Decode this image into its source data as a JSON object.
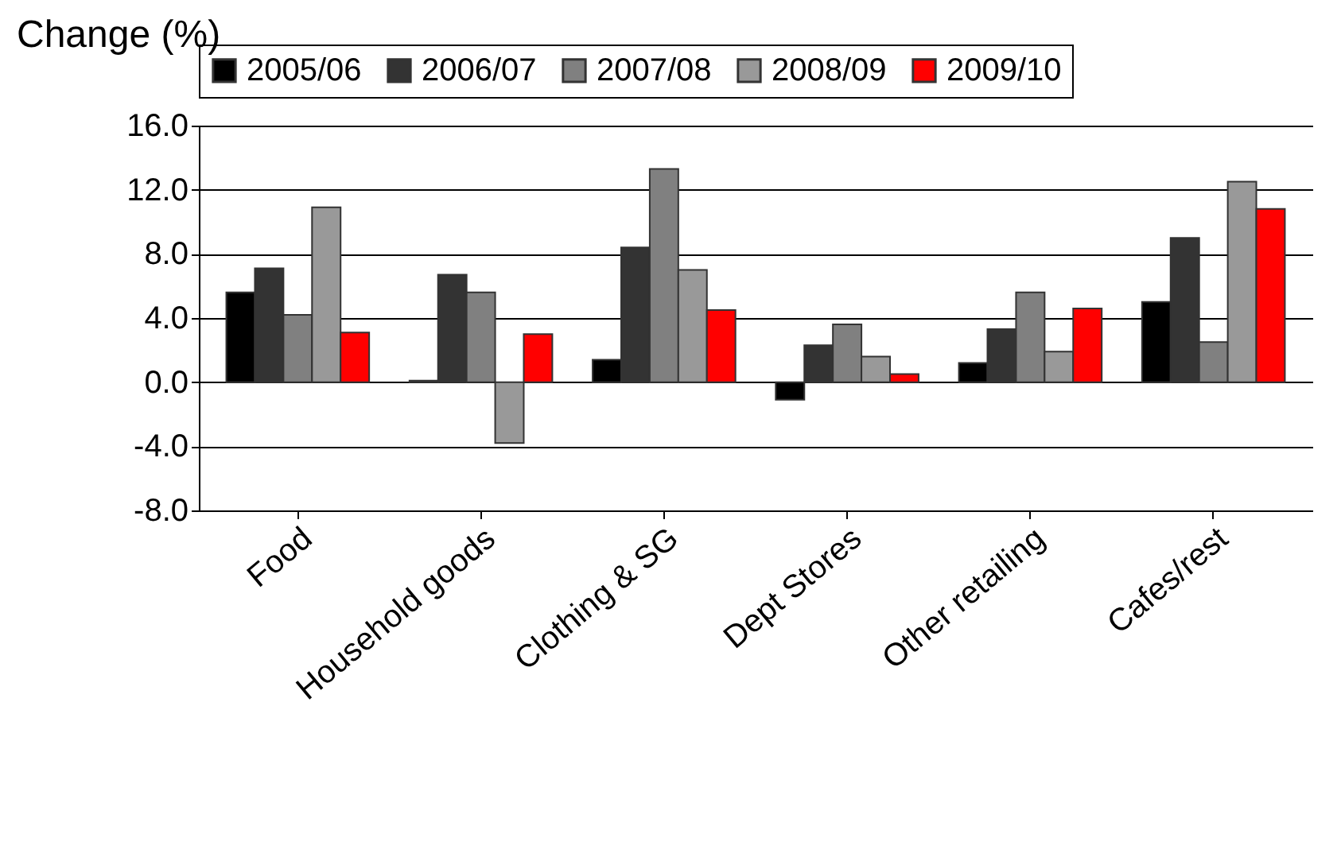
{
  "chart_data": {
    "type": "bar",
    "ylabel": "Change (%)",
    "categories": [
      "Food",
      "Household goods",
      "Clothing & SG",
      "Dept Stores",
      "Other retailing",
      "Cafes/rest"
    ],
    "series": [
      {
        "name": "2005/06",
        "color": "#000000",
        "values": [
          5.6,
          0.1,
          1.4,
          -1.1,
          1.2,
          5.0
        ]
      },
      {
        "name": "2006/07",
        "color": "#333333",
        "values": [
          7.1,
          6.7,
          8.4,
          2.3,
          3.3,
          9.0
        ]
      },
      {
        "name": "2007/08",
        "color": "#808080",
        "values": [
          4.2,
          5.6,
          13.3,
          3.6,
          5.6,
          2.5
        ]
      },
      {
        "name": "2008/09",
        "color": "#999999",
        "values": [
          10.9,
          -3.8,
          7.0,
          1.6,
          1.9,
          12.5
        ]
      },
      {
        "name": "2009/10",
        "color": "#ff0000",
        "values": [
          3.1,
          3.0,
          4.5,
          0.5,
          4.6,
          10.8
        ]
      }
    ],
    "ylim": [
      -8,
      16
    ],
    "yticks": [
      {
        "value": -8,
        "label": "-8.0"
      },
      {
        "value": -4,
        "label": "-4.0"
      },
      {
        "value": 0,
        "label": "0.0"
      },
      {
        "value": 4,
        "label": "4.0"
      },
      {
        "value": 8,
        "label": "8.0"
      },
      {
        "value": 12,
        "label": "12.0"
      },
      {
        "value": 16,
        "label": "16.0"
      }
    ],
    "grid": "y",
    "legend": "top"
  }
}
